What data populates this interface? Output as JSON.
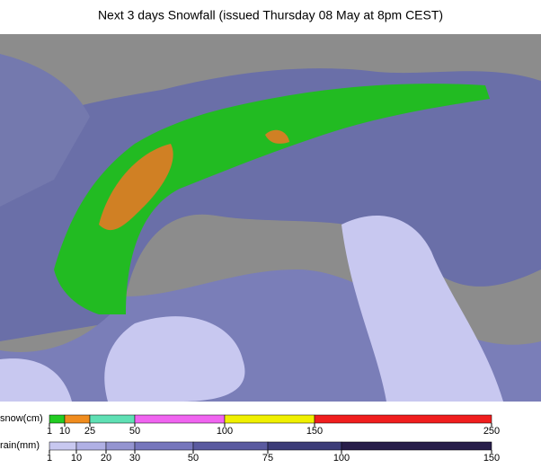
{
  "header": {
    "title": "Next 3 days Snowfall (issued Thursday 08 May at 8pm CEST)"
  },
  "legends": [
    {
      "label": "snow(cm)",
      "ticks": [
        1,
        10,
        25,
        50,
        100,
        150,
        250
      ],
      "colors": [
        "#22cc22",
        "#f08c1e",
        "#5fe0b4",
        "#f064f0",
        "#f0f000",
        "#f01e1e"
      ]
    },
    {
      "label": "rain(mm)",
      "ticks": [
        1,
        10,
        20,
        30,
        50,
        75,
        100,
        150
      ],
      "colors": [
        "#c8c8f0",
        "#b0b0e4",
        "#9494d0",
        "#7676bc",
        "#5a5aa0",
        "#3c3c78",
        "#281e4a"
      ]
    }
  ]
}
